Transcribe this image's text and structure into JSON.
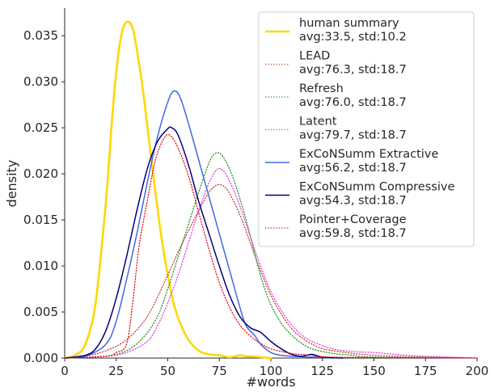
{
  "chart_data": {
    "type": "line",
    "title": "",
    "xlabel": "#words",
    "ylabel": "density",
    "xlim": [
      0,
      200
    ],
    "ylim": [
      0,
      0.038
    ],
    "xticks": [
      0,
      25,
      50,
      75,
      100,
      125,
      150,
      175,
      200
    ],
    "yticks": [
      0.0,
      0.005,
      0.01,
      0.015,
      0.02,
      0.025,
      0.03,
      0.035
    ],
    "ytick_labels": [
      "0.000",
      "0.005",
      "0.010",
      "0.015",
      "0.020",
      "0.025",
      "0.030",
      "0.035"
    ],
    "grid": false,
    "legend_position": "top-right",
    "series": [
      {
        "name": "human summary",
        "stats": "avg:33.5, std:10.2",
        "color": "#ffd700",
        "style": "solid",
        "width": 2.6,
        "points": [
          [
            0,
            0
          ],
          [
            5,
            0.0003
          ],
          [
            10,
            0.0015
          ],
          [
            15,
            0.006
          ],
          [
            20,
            0.017
          ],
          [
            23,
            0.026
          ],
          [
            25,
            0.031
          ],
          [
            27,
            0.0345
          ],
          [
            29,
            0.0362
          ],
          [
            31,
            0.0365
          ],
          [
            33,
            0.0358
          ],
          [
            35,
            0.0335
          ],
          [
            38,
            0.029
          ],
          [
            41,
            0.0235
          ],
          [
            44,
            0.018
          ],
          [
            47,
            0.013
          ],
          [
            50,
            0.009
          ],
          [
            53,
            0.0058
          ],
          [
            56,
            0.0038
          ],
          [
            60,
            0.002
          ],
          [
            65,
            0.0008
          ],
          [
            70,
            0.0004
          ],
          [
            75,
            0.0003
          ],
          [
            80,
            0.0001
          ],
          [
            85,
            0.0003
          ],
          [
            88,
            0.0002
          ],
          [
            95,
            0.0001
          ],
          [
            100,
            0.0
          ]
        ]
      },
      {
        "name": "LEAD",
        "stats": "avg:76.3, std:18.7",
        "color": "#c0392b",
        "style": "dotted",
        "width": 1.2,
        "points": [
          [
            0,
            0
          ],
          [
            10,
            0.0002
          ],
          [
            20,
            0.0008
          ],
          [
            30,
            0.002
          ],
          [
            40,
            0.0045
          ],
          [
            50,
            0.009
          ],
          [
            55,
            0.0115
          ],
          [
            60,
            0.0138
          ],
          [
            65,
            0.016
          ],
          [
            70,
            0.018
          ],
          [
            74,
            0.0188
          ],
          [
            78,
            0.0185
          ],
          [
            82,
            0.017
          ],
          [
            86,
            0.015
          ],
          [
            90,
            0.0125
          ],
          [
            95,
            0.0095
          ],
          [
            100,
            0.0068
          ],
          [
            105,
            0.0048
          ],
          [
            110,
            0.0032
          ],
          [
            115,
            0.0022
          ],
          [
            120,
            0.0015
          ],
          [
            125,
            0.001
          ],
          [
            130,
            0.0008
          ],
          [
            140,
            0.0005
          ],
          [
            150,
            0.0003
          ],
          [
            160,
            0.0002
          ],
          [
            175,
            0.0001
          ],
          [
            200,
            0.0
          ]
        ]
      },
      {
        "name": "Refresh",
        "stats": "avg:76.0, std:18.7",
        "color": "#1e8a1e",
        "style": "dotted",
        "width": 1.2,
        "points": [
          [
            0,
            0
          ],
          [
            20,
            0.0002
          ],
          [
            30,
            0.0008
          ],
          [
            38,
            0.0022
          ],
          [
            45,
            0.0045
          ],
          [
            50,
            0.0075
          ],
          [
            55,
            0.011
          ],
          [
            60,
            0.0145
          ],
          [
            65,
            0.018
          ],
          [
            70,
            0.0212
          ],
          [
            73,
            0.0222
          ],
          [
            76,
            0.0221
          ],
          [
            80,
            0.0205
          ],
          [
            84,
            0.018
          ],
          [
            88,
            0.015
          ],
          [
            92,
            0.0115
          ],
          [
            96,
            0.0082
          ],
          [
            100,
            0.0058
          ],
          [
            105,
            0.0038
          ],
          [
            110,
            0.0025
          ],
          [
            115,
            0.0016
          ],
          [
            120,
            0.001
          ],
          [
            130,
            0.0005
          ],
          [
            140,
            0.0003
          ],
          [
            150,
            0.0001
          ],
          [
            200,
            0.0
          ]
        ]
      },
      {
        "name": "Latent",
        "stats": "avg:79.7, std:18.7",
        "color": "#e633e6",
        "style": "dotted",
        "width": 1.2,
        "points": [
          [
            0,
            0
          ],
          [
            20,
            0.0002
          ],
          [
            30,
            0.0006
          ],
          [
            40,
            0.0018
          ],
          [
            45,
            0.0035
          ],
          [
            50,
            0.006
          ],
          [
            55,
            0.009
          ],
          [
            60,
            0.0125
          ],
          [
            65,
            0.016
          ],
          [
            70,
            0.019
          ],
          [
            74,
            0.0205
          ],
          [
            77,
            0.0203
          ],
          [
            80,
            0.0192
          ],
          [
            85,
            0.0165
          ],
          [
            90,
            0.0132
          ],
          [
            95,
            0.01
          ],
          [
            100,
            0.0072
          ],
          [
            105,
            0.0052
          ],
          [
            110,
            0.0036
          ],
          [
            115,
            0.0025
          ],
          [
            120,
            0.0018
          ],
          [
            130,
            0.001
          ],
          [
            140,
            0.0007
          ],
          [
            150,
            0.0006
          ],
          [
            160,
            0.0004
          ],
          [
            175,
            0.0002
          ],
          [
            200,
            0.0
          ]
        ]
      },
      {
        "name": "ExCoNSumm Extractive",
        "stats": "avg:56.2, std:18.7",
        "color": "#4169e1",
        "style": "solid",
        "width": 1.5,
        "points": [
          [
            0,
            0
          ],
          [
            10,
            0.0002
          ],
          [
            20,
            0.0015
          ],
          [
            25,
            0.004
          ],
          [
            30,
            0.0085
          ],
          [
            35,
            0.0135
          ],
          [
            40,
            0.019
          ],
          [
            45,
            0.024
          ],
          [
            50,
            0.0278
          ],
          [
            53,
            0.029
          ],
          [
            56,
            0.0283
          ],
          [
            60,
            0.0255
          ],
          [
            65,
            0.0215
          ],
          [
            70,
            0.0175
          ],
          [
            75,
            0.0135
          ],
          [
            80,
            0.0095
          ],
          [
            85,
            0.0055
          ],
          [
            88,
            0.0035
          ],
          [
            92,
            0.0025
          ],
          [
            95,
            0.0015
          ],
          [
            100,
            0.0006
          ],
          [
            105,
            0.0003
          ],
          [
            110,
            0.0002
          ],
          [
            120,
            0.0001
          ],
          [
            130,
            0.0
          ]
        ]
      },
      {
        "name": "ExCoNSumm Compressive",
        "stats": "avg:54.3, std:18.7",
        "color": "#000080",
        "style": "solid",
        "width": 1.5,
        "points": [
          [
            0,
            0
          ],
          [
            10,
            0.0003
          ],
          [
            15,
            0.001
          ],
          [
            20,
            0.003
          ],
          [
            25,
            0.0065
          ],
          [
            30,
            0.011
          ],
          [
            35,
            0.016
          ],
          [
            40,
            0.0205
          ],
          [
            45,
            0.0235
          ],
          [
            50,
            0.0249
          ],
          [
            52,
            0.025
          ],
          [
            55,
            0.0242
          ],
          [
            60,
            0.021
          ],
          [
            65,
            0.017
          ],
          [
            70,
            0.0135
          ],
          [
            75,
            0.01
          ],
          [
            80,
            0.0068
          ],
          [
            85,
            0.0045
          ],
          [
            90,
            0.0033
          ],
          [
            95,
            0.0028
          ],
          [
            100,
            0.0018
          ],
          [
            105,
            0.001
          ],
          [
            110,
            0.0004
          ],
          [
            115,
            0.0002
          ],
          [
            120,
            0.0004
          ],
          [
            125,
            0.0001
          ],
          [
            135,
            0.0
          ]
        ]
      },
      {
        "name": "Pointer+Coverage",
        "stats": "avg:59.8, std:18.7",
        "color": "#e00000",
        "style": "dotted",
        "width": 1.2,
        "points": [
          [
            0,
            0
          ],
          [
            20,
            0.0002
          ],
          [
            25,
            0.0006
          ],
          [
            30,
            0.0015
          ],
          [
            33,
            0.006
          ],
          [
            36,
            0.012
          ],
          [
            40,
            0.017
          ],
          [
            44,
            0.0215
          ],
          [
            48,
            0.0238
          ],
          [
            51,
            0.0242
          ],
          [
            55,
            0.0228
          ],
          [
            60,
            0.0198
          ],
          [
            65,
            0.0158
          ],
          [
            70,
            0.0118
          ],
          [
            75,
            0.0082
          ],
          [
            80,
            0.0055
          ],
          [
            85,
            0.0036
          ],
          [
            90,
            0.0024
          ],
          [
            95,
            0.0016
          ],
          [
            100,
            0.001
          ],
          [
            110,
            0.0005
          ],
          [
            120,
            0.0003
          ],
          [
            130,
            0.0001
          ],
          [
            200,
            0.0
          ]
        ]
      }
    ]
  }
}
